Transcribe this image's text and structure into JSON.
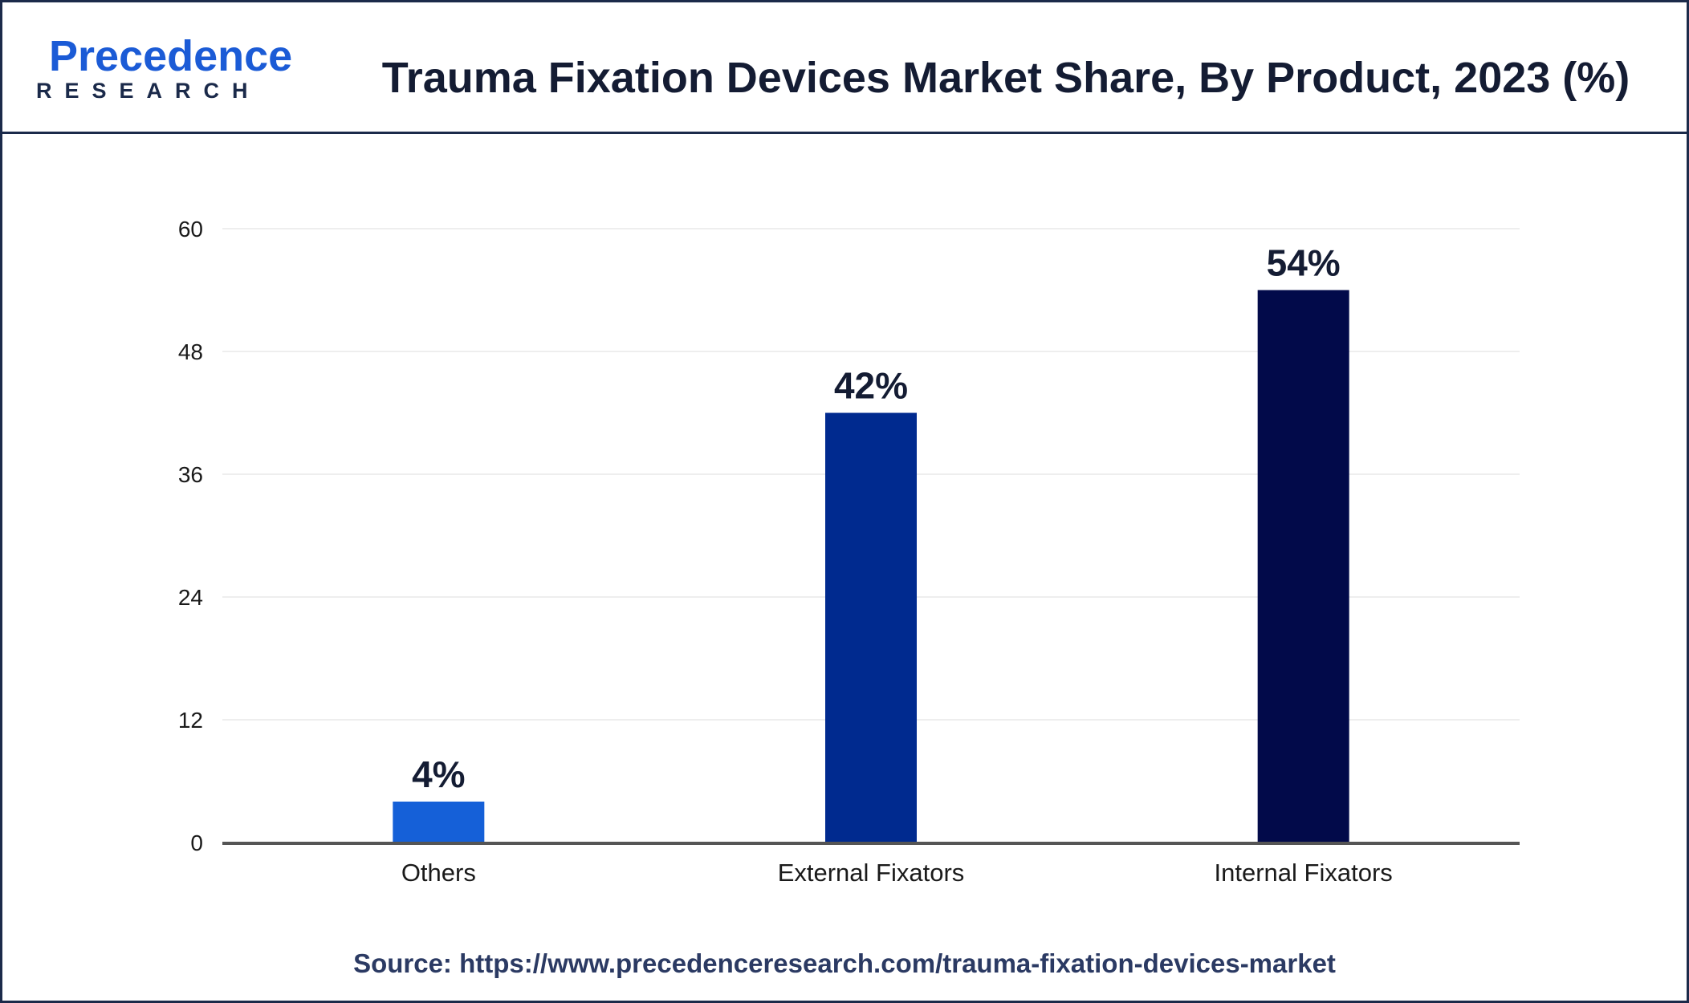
{
  "brand": {
    "name": "Precedence",
    "sub": "RESEARCH"
  },
  "colors": {
    "others": "#1560d8",
    "external": "#002a8f",
    "internal": "#020a4a",
    "grid": "#eeeeee",
    "axis": "#555555"
  },
  "chart_data": {
    "type": "bar",
    "title": "Trauma Fixation Devices Market Share, By Product, 2023 (%)",
    "xlabel": "",
    "ylabel": "",
    "categories": [
      "Others",
      "External Fixators",
      "Internal Fixators"
    ],
    "values": [
      4,
      42,
      54
    ],
    "data_labels": [
      "4%",
      "42%",
      "54%"
    ],
    "yticks": [
      0,
      12,
      24,
      36,
      48,
      60
    ],
    "ylim": [
      0,
      60
    ],
    "grid": true,
    "legend": "none"
  },
  "source": "Source: https://www.precedenceresearch.com/trauma-fixation-devices-market"
}
